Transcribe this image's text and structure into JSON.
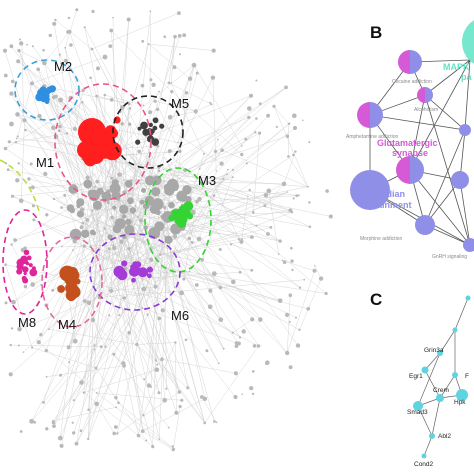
{
  "panels": {
    "b": {
      "letter": "B"
    },
    "c": {
      "letter": "C"
    }
  },
  "modules": [
    {
      "id": "m1",
      "label": "M1",
      "color": "#ff1f1f",
      "ring": "#e8558a"
    },
    {
      "id": "m2",
      "label": "M2",
      "color": "#2f8fe0",
      "ring": "#3aa0d8"
    },
    {
      "id": "m3",
      "label": "M3",
      "color": "#33d433",
      "ring": "#33d433"
    },
    {
      "id": "m4",
      "label": "M4",
      "color": "#c4501e",
      "ring": "#e26aa0"
    },
    {
      "id": "m5",
      "label": "M5",
      "color": "#404040",
      "ring": "#222222"
    },
    {
      "id": "m6",
      "label": "M6",
      "color": "#a43bd6",
      "ring": "#8a3ad0"
    },
    {
      "id": "m8",
      "label": "M8",
      "color": "#e0249a",
      "ring": "#e0249a"
    }
  ],
  "panel_b": {
    "terms": {
      "mapk": "MAPK",
      "mapk_cont": "pa",
      "glutamatergic_1": "Glutamatergic",
      "glutamatergic_2": "synapse",
      "circadian_1": "Circadian",
      "circadian_2": "entrainment",
      "cocaine": "Cocaine addiction",
      "amphetamine": "Amphetamine addiction",
      "alcoholism": "Alcoholism",
      "morphine": "Morphine addiction",
      "gnrh": "GnRH signaling"
    },
    "colors": {
      "pink": "#d659d6",
      "lavender": "#8f8fe8",
      "teal": "#5fe3c4"
    }
  },
  "panel_c": {
    "genes": {
      "grin3a": "Grin3a",
      "egr1": "Egr1",
      "crem": "Crem",
      "smad3": "Smad3",
      "hpk": "Hpk",
      "abl2": "Abl2",
      "cond2": "Cond2",
      "fgf": "F"
    },
    "node_color": "#5ed4e0"
  }
}
